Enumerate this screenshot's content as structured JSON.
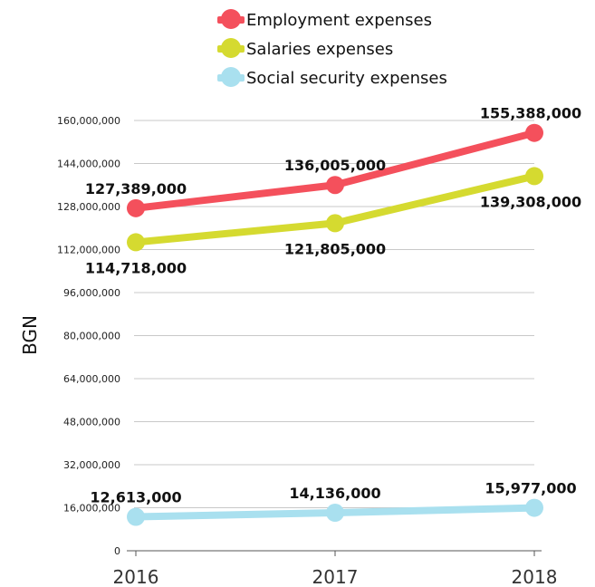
{
  "chart_data": {
    "type": "line",
    "x": [
      "2016",
      "2017",
      "2018"
    ],
    "ylabel": "BGN",
    "ylim": [
      0,
      160000000
    ],
    "yticks": [
      "0",
      "16,000,000",
      "32,000,000",
      "48,000,000",
      "64,000,000",
      "80,000,000",
      "96,000,000",
      "112,000,000",
      "128,000,000",
      "144,000,000",
      "160,000,000"
    ],
    "grid": true,
    "legend_position": "top",
    "series": [
      {
        "name": "Employment expenses",
        "color": "#f4505c",
        "values": [
          127389000,
          136005000,
          155388000
        ],
        "labels": [
          "127,389,000",
          "136,005,000",
          "155,388,000"
        ],
        "label_side": [
          "above",
          "above",
          "above"
        ]
      },
      {
        "name": "Salaries expenses",
        "color": "#d5da30",
        "values": [
          114718000,
          121805000,
          139308000
        ],
        "labels": [
          "114,718,000",
          "121,805,000",
          "139,308,000"
        ],
        "label_side": [
          "below",
          "below",
          "below"
        ]
      },
      {
        "name": "Social security expenses",
        "color": "#a9e0ef",
        "values": [
          12613000,
          14136000,
          15977000
        ],
        "labels": [
          "12,613,000",
          "14,136,000",
          "15,977,000"
        ],
        "label_side": [
          "above",
          "above",
          "above"
        ]
      }
    ]
  }
}
